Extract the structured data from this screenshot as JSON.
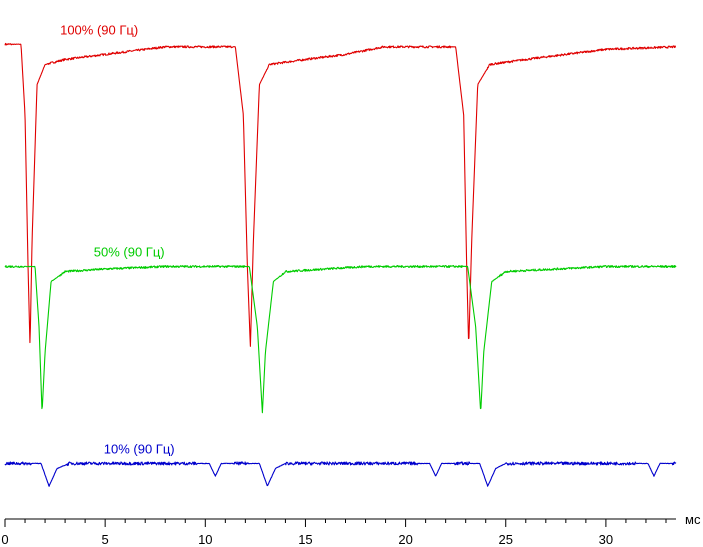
{
  "chart_data": {
    "type": "line",
    "xlabel": "мс",
    "xlim": [
      0,
      33.5
    ],
    "x_ticks": [
      0,
      5,
      10,
      15,
      20,
      25,
      30
    ],
    "grid": false,
    "legend": "labels-above-series",
    "series": [
      {
        "name": "100% (90 Гц)",
        "color": "#e00000",
        "label_at_x": 4.7,
        "baseline_level": 0.94,
        "dips": [
          {
            "x": 1.25,
            "depth": -0.6
          },
          {
            "x": 12.25,
            "depth": -0.6
          },
          {
            "x": 23.15,
            "depth": -0.6
          }
        ],
        "x": [
          0.0,
          0.8,
          1.0,
          1.15,
          1.25,
          1.35,
          1.6,
          2.0,
          3.0,
          5.0,
          7.0,
          8.0,
          9.0,
          11.5,
          11.9,
          12.1,
          12.25,
          12.4,
          12.7,
          13.2,
          15.0,
          17.0,
          18.9,
          20.0,
          22.5,
          22.9,
          23.05,
          23.15,
          23.3,
          23.6,
          24.2,
          26.0,
          28.0,
          30.0,
          33.5
        ],
        "y": [
          0.94,
          0.94,
          0.8,
          0.5,
          0.34,
          0.55,
          0.86,
          0.9,
          0.91,
          0.92,
          0.93,
          0.935,
          0.935,
          0.935,
          0.8,
          0.5,
          0.34,
          0.55,
          0.86,
          0.9,
          0.91,
          0.92,
          0.935,
          0.935,
          0.935,
          0.8,
          0.5,
          0.34,
          0.55,
          0.86,
          0.9,
          0.91,
          0.92,
          0.93,
          0.935
        ]
      },
      {
        "name": "50% (90 Гц)",
        "color": "#00cc00",
        "label_at_x": 6.2,
        "baseline_level": 0.5,
        "dips": [
          {
            "x": 1.85,
            "depth": -0.29
          },
          {
            "x": 12.85,
            "depth": -0.29
          },
          {
            "x": 23.75,
            "depth": -0.29
          }
        ],
        "x": [
          0.0,
          1.5,
          1.7,
          1.85,
          2.0,
          2.3,
          3.0,
          5.0,
          8.0,
          12.2,
          12.6,
          12.85,
          13.0,
          13.4,
          14.0,
          18.0,
          23.1,
          23.5,
          23.75,
          23.9,
          24.3,
          25.0,
          30.0,
          33.5
        ],
        "y": [
          0.5,
          0.5,
          0.38,
          0.21,
          0.33,
          0.47,
          0.49,
          0.495,
          0.5,
          0.5,
          0.38,
          0.21,
          0.33,
          0.47,
          0.49,
          0.5,
          0.5,
          0.38,
          0.21,
          0.33,
          0.47,
          0.49,
          0.5,
          0.5
        ]
      },
      {
        "name": "10% (90 Гц)",
        "color": "#0000cc",
        "label_at_x": 6.7,
        "baseline_level": 0.11,
        "dips": [
          {
            "x": 2.2,
            "depth": -0.045
          },
          {
            "x": 10.5,
            "depth": -0.025
          },
          {
            "x": 13.1,
            "depth": -0.045
          },
          {
            "x": 21.5,
            "depth": -0.025
          },
          {
            "x": 24.1,
            "depth": -0.045
          },
          {
            "x": 32.4,
            "depth": -0.025
          }
        ],
        "x": [
          0.0,
          1.8,
          2.2,
          2.6,
          3.2,
          10.2,
          10.5,
          10.8,
          12.7,
          13.1,
          13.5,
          14.0,
          21.2,
          21.5,
          21.8,
          23.7,
          24.1,
          24.5,
          25.0,
          32.1,
          32.4,
          32.7,
          33.5
        ],
        "y": [
          0.11,
          0.11,
          0.065,
          0.1,
          0.11,
          0.11,
          0.085,
          0.11,
          0.11,
          0.065,
          0.1,
          0.11,
          0.11,
          0.085,
          0.11,
          0.11,
          0.065,
          0.1,
          0.11,
          0.11,
          0.085,
          0.11,
          0.11
        ]
      }
    ]
  }
}
